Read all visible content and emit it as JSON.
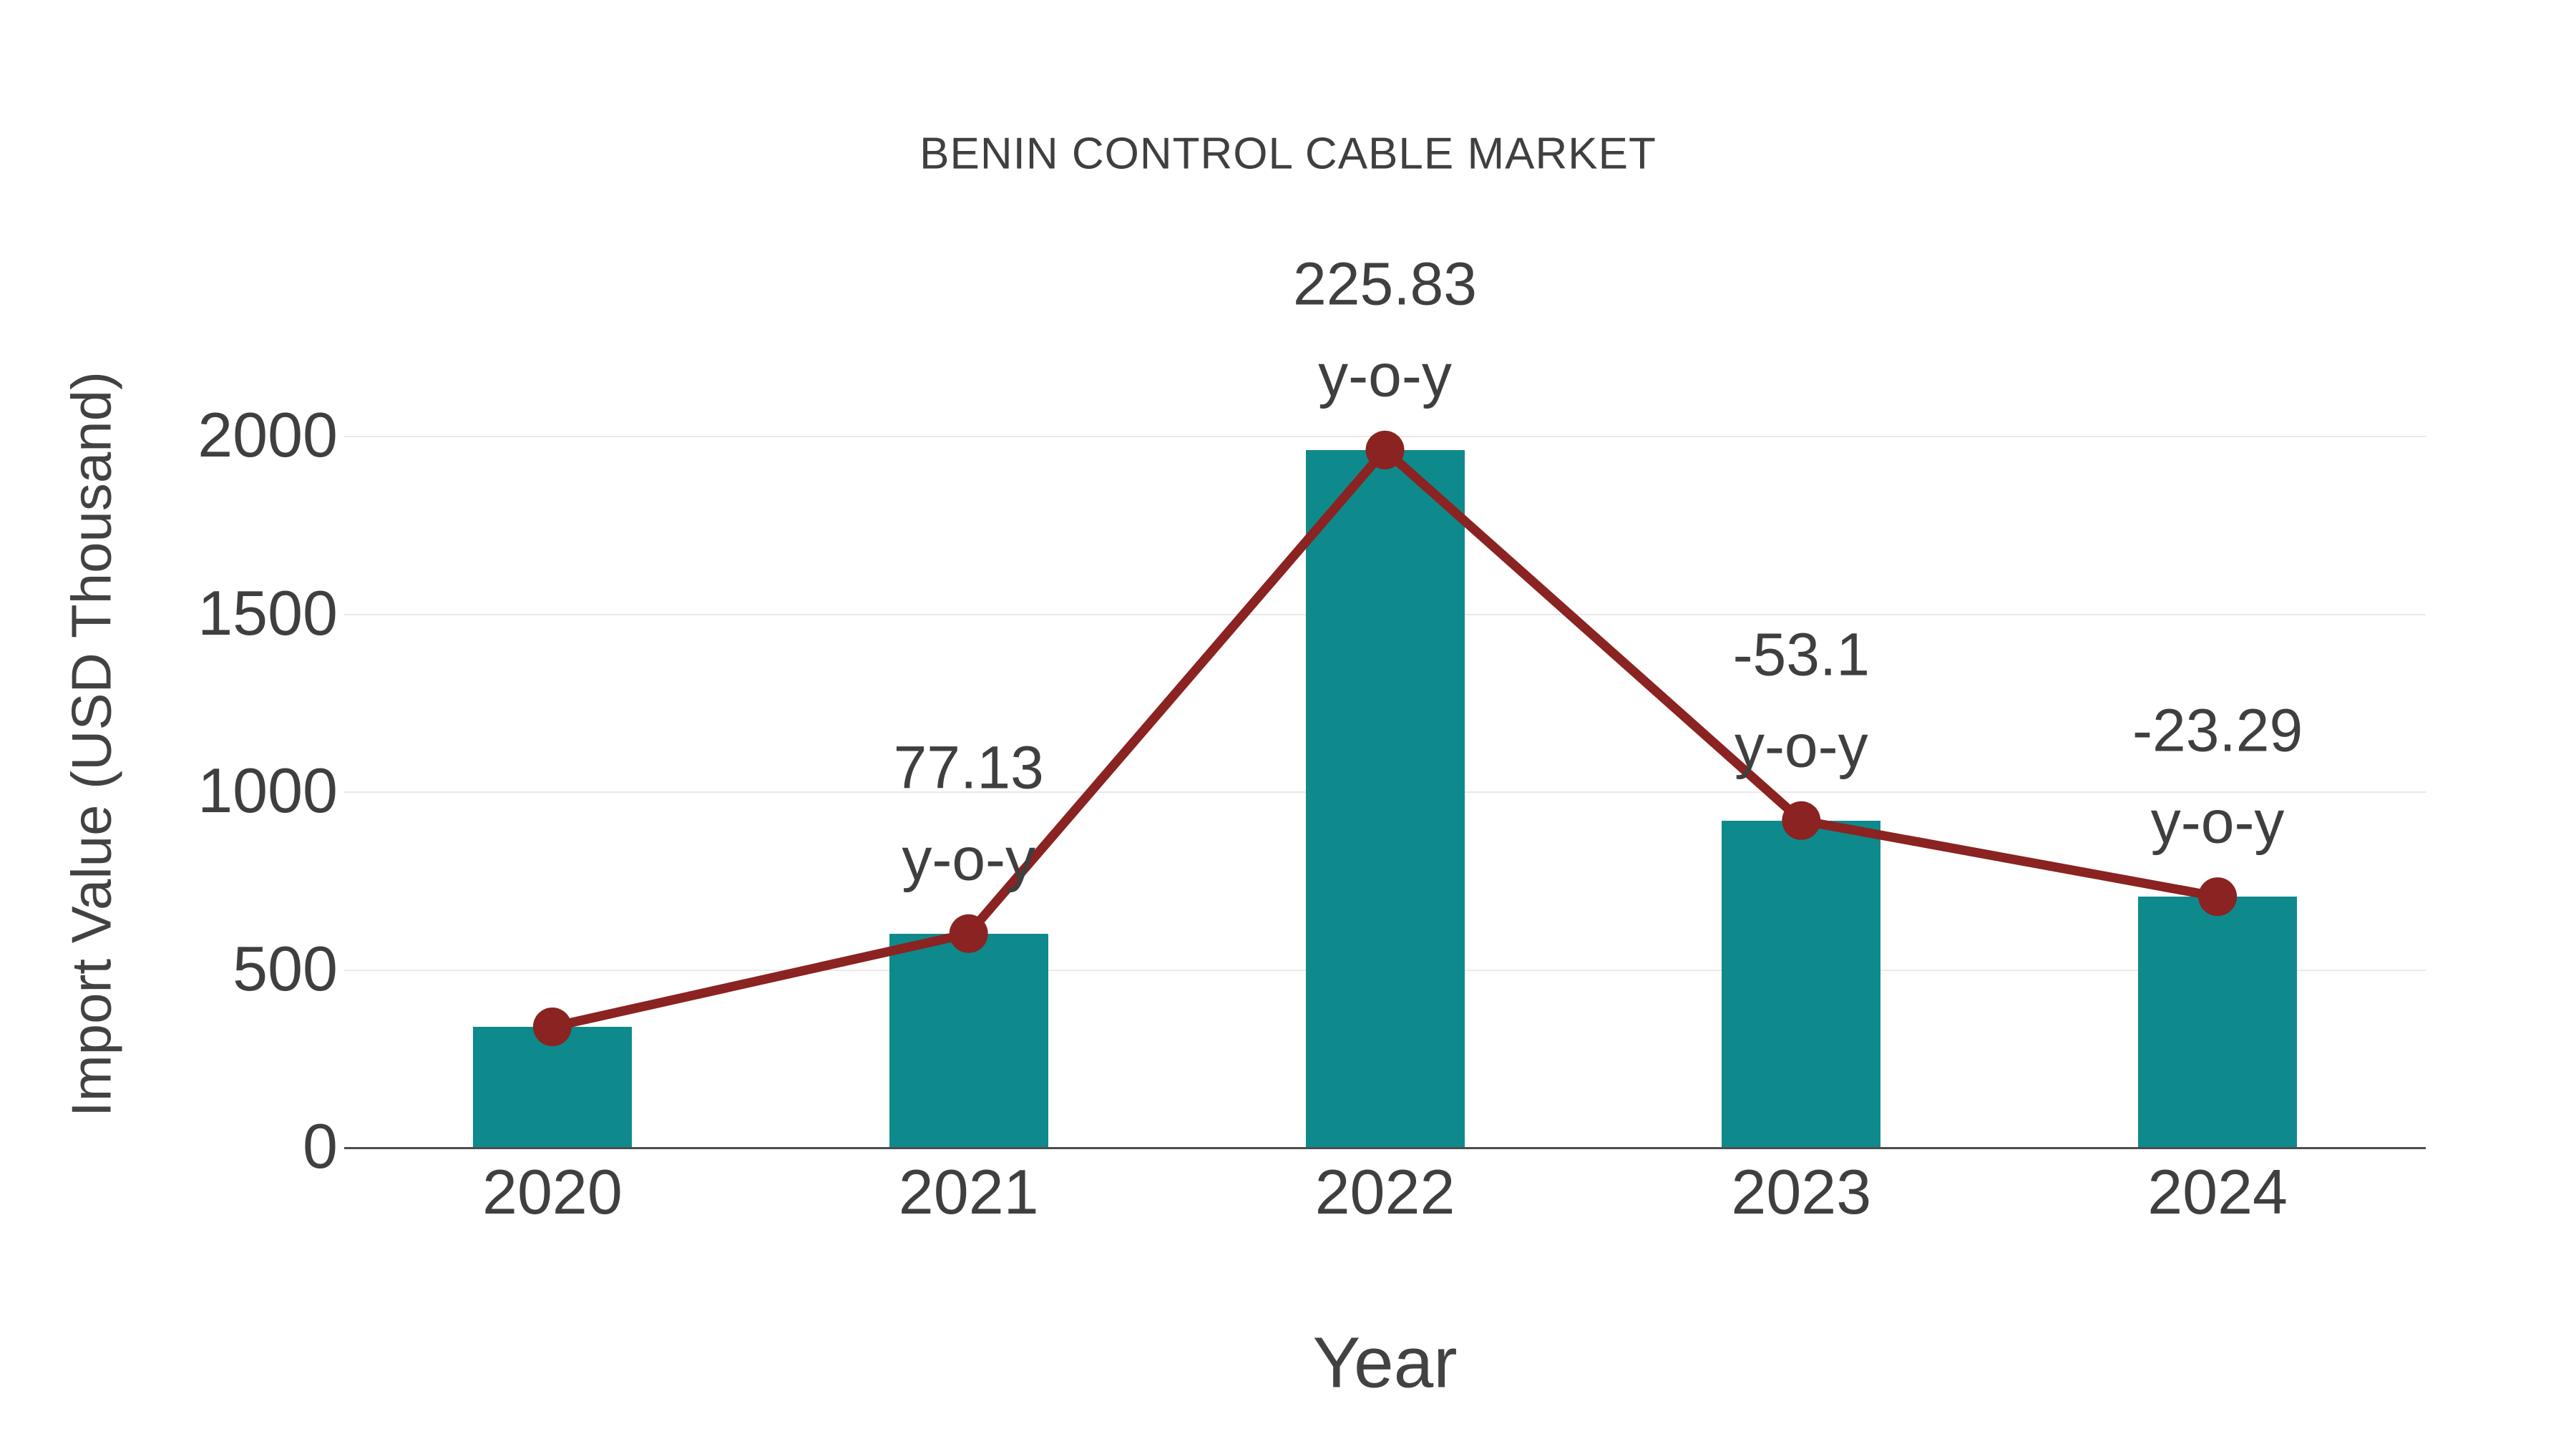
{
  "title": "BENIN CONTROL CABLE MARKET",
  "chart_data": {
    "type": "bar",
    "title": "BENIN CONTROL CABLE MARKET",
    "categories": [
      "2020",
      "2021",
      "2022",
      "2023",
      "2024"
    ],
    "series": [
      {
        "name": "Import Value",
        "type": "bar",
        "values": [
          340,
          602,
          1962,
          920,
          706
        ]
      },
      {
        "name": "y-o-y trend",
        "type": "line",
        "values": [
          340,
          602,
          1962,
          920,
          706
        ]
      }
    ],
    "point_labels": [
      "",
      "77.13",
      "225.83",
      "-53.1",
      "-23.29"
    ],
    "point_label_suffix": "y-o-y",
    "xlabel": "Year",
    "ylabel": "Import Value (USD Thousand)",
    "yticks": [
      0,
      500,
      1000,
      1500,
      2000
    ],
    "ylim": [
      0,
      2100
    ],
    "grid": "horizontal",
    "legend": "none",
    "colors": {
      "bar": "#0e8a8c",
      "line": "#8a2321",
      "grid": "#e9e9e9",
      "axis": "#4d4d4d",
      "text": "#3f3f3f"
    }
  }
}
